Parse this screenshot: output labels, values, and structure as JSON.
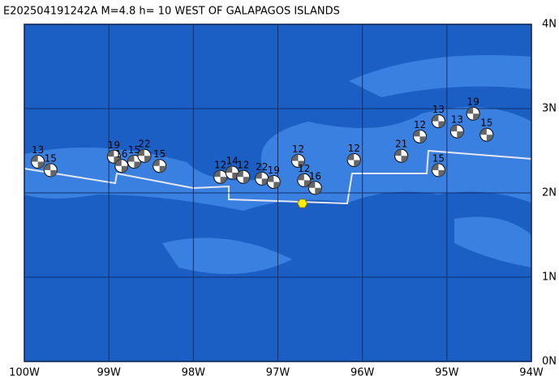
{
  "map": {
    "title": "E202504191242A M=4.8 h= 10 WEST OF GALAPAGOS ISLANDS",
    "xlim": [
      -100,
      -94
    ],
    "ylim": [
      0,
      4
    ],
    "xticks": [
      {
        "value": -100,
        "label": "100W"
      },
      {
        "value": -99,
        "label": "99W"
      },
      {
        "value": -98,
        "label": "98W"
      },
      {
        "value": -97,
        "label": "97W"
      },
      {
        "value": -96,
        "label": "96W"
      },
      {
        "value": -95,
        "label": "95W"
      },
      {
        "value": -94,
        "label": "94W"
      }
    ],
    "yticks": [
      {
        "value": 0,
        "label": "0N"
      },
      {
        "value": 1,
        "label": "1N"
      },
      {
        "value": 2,
        "label": "2N"
      },
      {
        "value": 3,
        "label": "3N"
      },
      {
        "value": 4,
        "label": "4N"
      }
    ],
    "epicenter": {
      "lon": -96.71,
      "lat": 1.875,
      "color": "#ffee00"
    },
    "events": [
      {
        "lon": -99.84,
        "lat": 2.37,
        "label": "13"
      },
      {
        "lon": -99.69,
        "lat": 2.27,
        "label": "15"
      },
      {
        "lon": -98.94,
        "lat": 2.43,
        "label": "19"
      },
      {
        "lon": -98.85,
        "lat": 2.32,
        "label": "16"
      },
      {
        "lon": -98.7,
        "lat": 2.37,
        "label": "15"
      },
      {
        "lon": -98.58,
        "lat": 2.44,
        "label": "22"
      },
      {
        "lon": -98.4,
        "lat": 2.32,
        "label": "15"
      },
      {
        "lon": -97.68,
        "lat": 2.19,
        "label": "12"
      },
      {
        "lon": -97.54,
        "lat": 2.24,
        "label": "14"
      },
      {
        "lon": -97.41,
        "lat": 2.19,
        "label": "12"
      },
      {
        "lon": -97.19,
        "lat": 2.17,
        "label": "22"
      },
      {
        "lon": -97.05,
        "lat": 2.13,
        "label": "19"
      },
      {
        "lon": -96.76,
        "lat": 2.38,
        "label": "12"
      },
      {
        "lon": -96.69,
        "lat": 2.15,
        "label": "12"
      },
      {
        "lon": -96.56,
        "lat": 2.06,
        "label": "16"
      },
      {
        "lon": -96.1,
        "lat": 2.39,
        "label": "12"
      },
      {
        "lon": -95.54,
        "lat": 2.44,
        "label": "21"
      },
      {
        "lon": -95.32,
        "lat": 2.67,
        "label": "12"
      },
      {
        "lon": -95.1,
        "lat": 2.85,
        "label": "13"
      },
      {
        "lon": -94.88,
        "lat": 2.73,
        "label": "13"
      },
      {
        "lon": -94.69,
        "lat": 2.94,
        "label": "19"
      },
      {
        "lon": -94.53,
        "lat": 2.69,
        "label": "15"
      },
      {
        "lon": -95.1,
        "lat": 2.27,
        "label": "15"
      }
    ]
  }
}
